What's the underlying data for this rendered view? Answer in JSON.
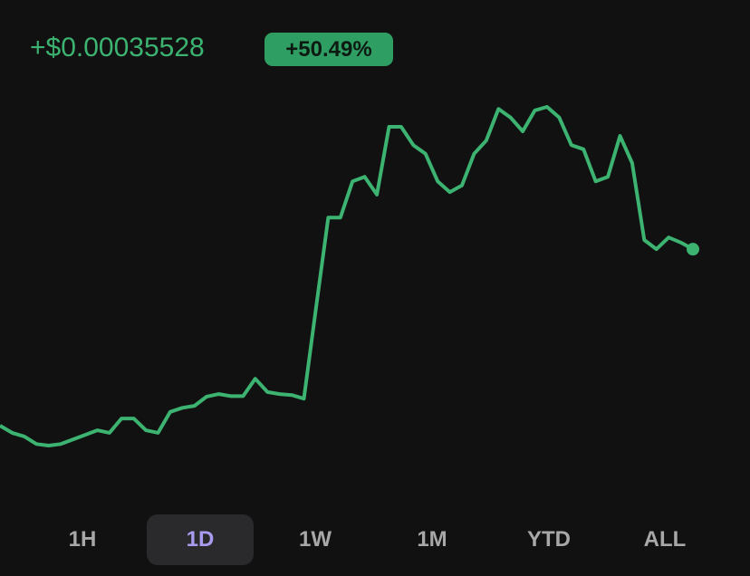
{
  "header": {
    "change": "+$0.00035528",
    "change_percent": "+50.49%"
  },
  "chart": {
    "type": "line",
    "color": "#3cb371",
    "values": [
      9e-06,
      -5e-06,
      -1.2e-05,
      -2.7e-05,
      -3e-05,
      -2.7e-05,
      -1.8e-05,
      -9e-06,
      0,
      -5e-06,
      2.3e-05,
      2.3e-05,
      0,
      -5e-06,
      3.6e-05,
      4.4e-05,
      4.8e-05,
      6.6e-05,
      7.1e-05,
      6.7e-05,
      6.7e-05,
      0.000101,
      7.5e-05,
      7.1e-05,
      6.9e-05,
      6.2e-05,
      0.00024,
      0.000417,
      0.000417,
      0.000488,
      0.000497,
      0.000462,
      0.000595,
      0.000595,
      0.000559,
      0.000542,
      0.000488,
      0.000467,
      0.00048,
      0.000542,
      0.000568,
      0.00063,
      0.000613,
      0.000586,
      0.000627,
      0.000634,
      0.000613,
      0.000559,
      0.000551,
      0.000488,
      0.000497,
      0.000577,
      0.000524,
      0.000373,
      0.000355,
      0.000378,
      0.000368,
      0.000355
    ]
  },
  "tabs": {
    "items": [
      "1H",
      "1D",
      "1W",
      "1M",
      "YTD",
      "ALL"
    ],
    "selected": 1
  }
}
